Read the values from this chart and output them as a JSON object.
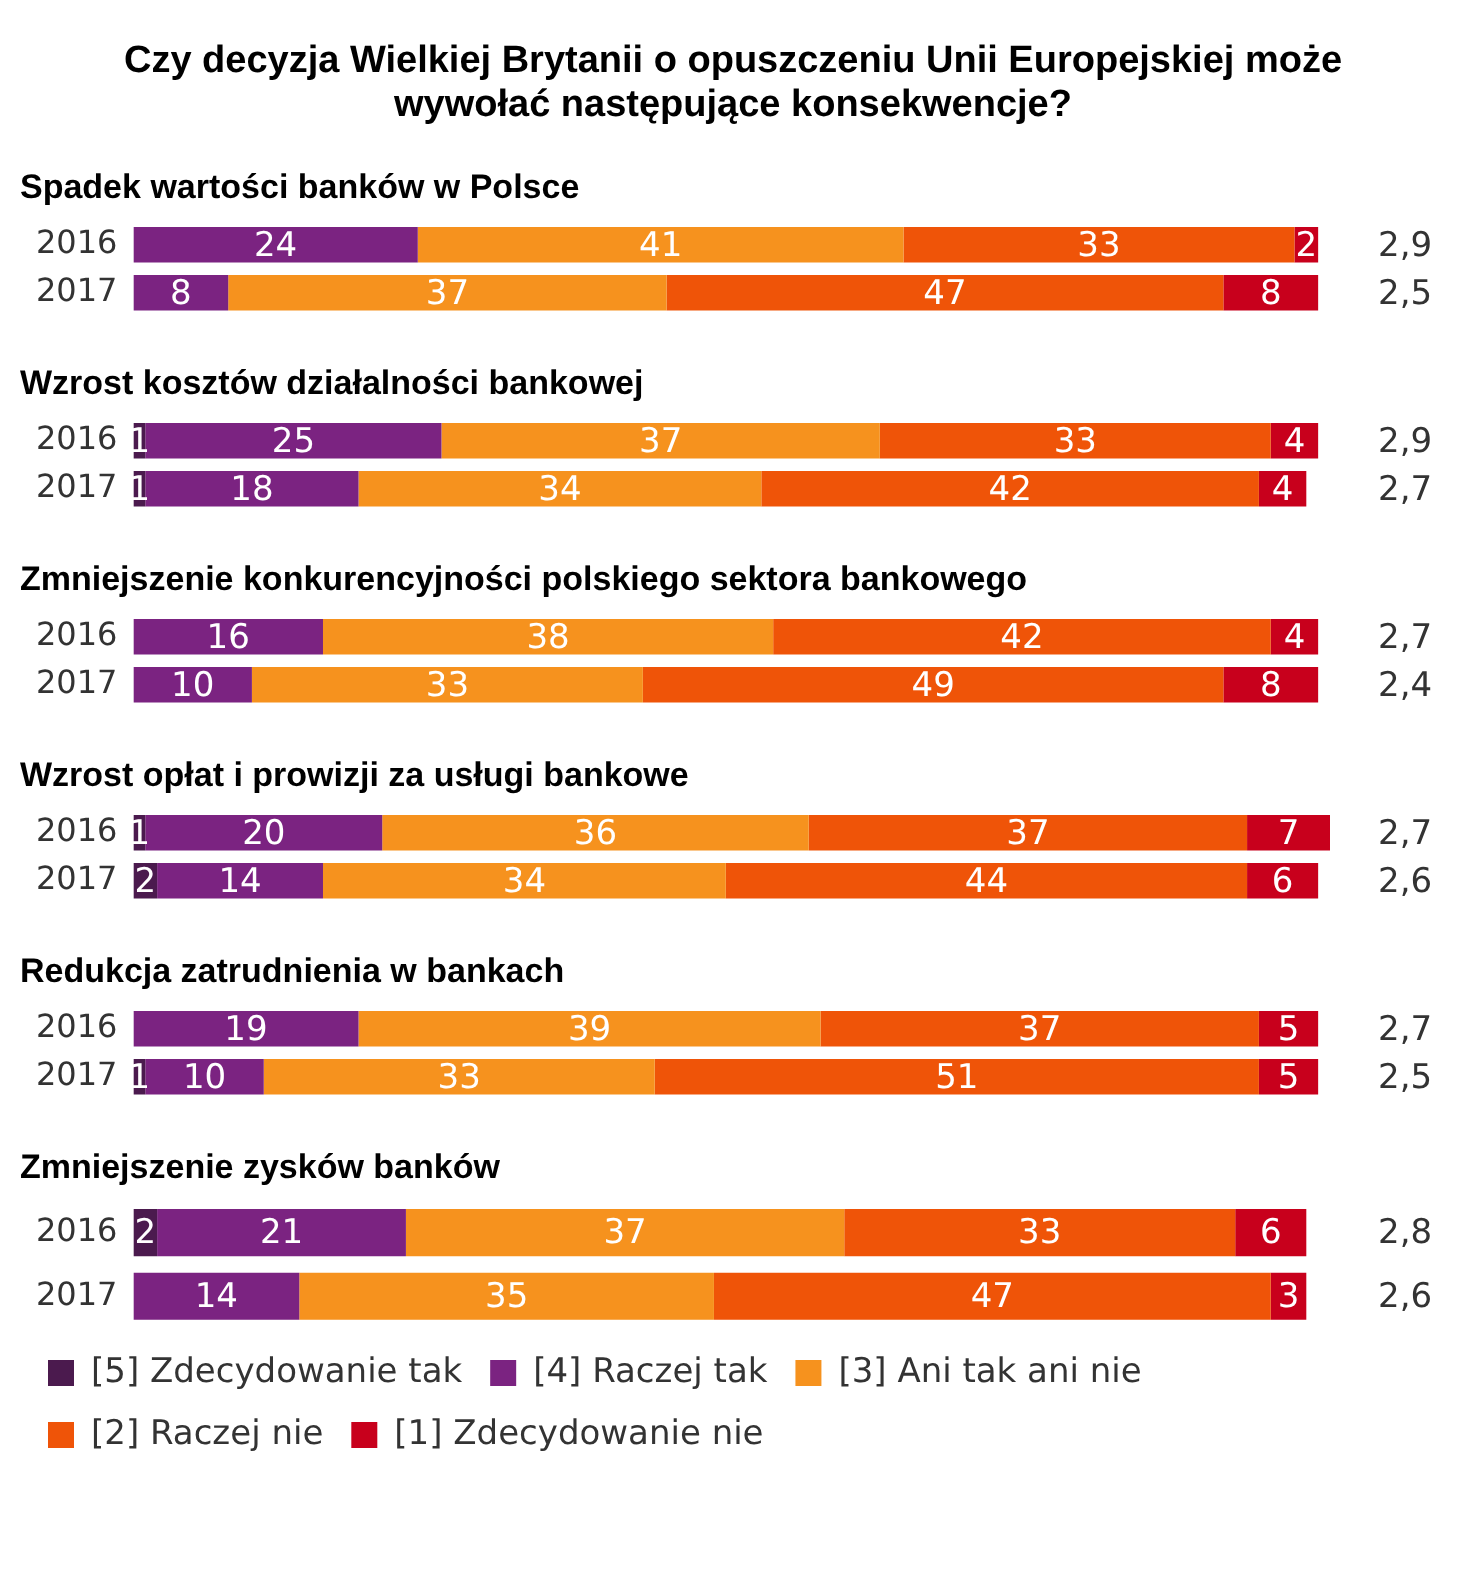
{
  "chart_data": [
    {
      "type": "other",
      "title": "Czy decyzja Wielkiej Brytanii o opuszczeniu Unii Europejskiej może wywołać następujące konsekwencje?"
    },
    {
      "type": "bar",
      "orientation": "horizontal",
      "stacked": true,
      "data_labels": true,
      "title": "Spadek wartości banków w Polsce",
      "categories": [
        "2016",
        "2017"
      ],
      "tick_labels": "y",
      "grid": false,
      "legend": false,
      "series": [
        {
          "color": "#4b1a4e",
          "values": [
            null,
            null
          ]
        },
        {
          "color": "#7b2381",
          "values": [
            24,
            8
          ]
        },
        {
          "color": "#f6921e",
          "values": [
            41,
            37
          ]
        },
        {
          "color": "#ef5408",
          "values": [
            33,
            47
          ]
        },
        {
          "color": "#c8001c",
          "values": [
            2,
            8
          ]
        }
      ],
      "annotations": [
        "2,9",
        "2,5"
      ]
    },
    {
      "type": "bar",
      "orientation": "horizontal",
      "stacked": true,
      "data_labels": true,
      "title": "Wzrost kosztów działalności bankowej",
      "categories": [
        "2016",
        "2017"
      ],
      "tick_labels": "y",
      "grid": false,
      "legend": false,
      "series": [
        {
          "color": "#4b1a4e",
          "values": [
            1,
            1
          ]
        },
        {
          "color": "#7b2381",
          "values": [
            25,
            18
          ]
        },
        {
          "color": "#f6921e",
          "values": [
            37,
            34
          ]
        },
        {
          "color": "#ef5408",
          "values": [
            33,
            42
          ]
        },
        {
          "color": "#c8001c",
          "values": [
            4,
            4
          ]
        }
      ],
      "annotations": [
        "2,9",
        "2,7"
      ]
    },
    {
      "type": "bar",
      "orientation": "horizontal",
      "stacked": true,
      "data_labels": true,
      "title": "Zmniejszenie konkurencyjności polskiego sektora bankowego",
      "categories": [
        "2016",
        "2017"
      ],
      "tick_labels": "y",
      "grid": false,
      "legend": false,
      "series": [
        {
          "color": "#4b1a4e",
          "values": [
            null,
            null
          ]
        },
        {
          "color": "#7b2381",
          "values": [
            16,
            10
          ]
        },
        {
          "color": "#f6921e",
          "values": [
            38,
            33
          ]
        },
        {
          "color": "#ef5408",
          "values": [
            42,
            49
          ]
        },
        {
          "color": "#c8001c",
          "values": [
            4,
            8
          ]
        }
      ],
      "annotations": [
        "2,7",
        "2,4"
      ]
    },
    {
      "type": "bar",
      "orientation": "horizontal",
      "stacked": true,
      "data_labels": true,
      "title": "Wzrost opłat i prowizji za usługi bankowe",
      "categories": [
        "2016",
        "2017"
      ],
      "tick_labels": "y",
      "grid": false,
      "legend": false,
      "series": [
        {
          "color": "#4b1a4e",
          "values": [
            1,
            2
          ]
        },
        {
          "color": "#7b2381",
          "values": [
            20,
            14
          ]
        },
        {
          "color": "#f6921e",
          "values": [
            36,
            34
          ]
        },
        {
          "color": "#ef5408",
          "values": [
            37,
            44
          ]
        },
        {
          "color": "#c8001c",
          "values": [
            7,
            6
          ]
        }
      ],
      "annotations": [
        "2,7",
        "2,6"
      ]
    },
    {
      "type": "bar",
      "orientation": "horizontal",
      "stacked": true,
      "data_labels": true,
      "title": "Redukcja zatrudnienia w bankach",
      "categories": [
        "2016",
        "2017"
      ],
      "tick_labels": "y",
      "grid": false,
      "legend": false,
      "series": [
        {
          "color": "#4b1a4e",
          "values": [
            null,
            1
          ]
        },
        {
          "color": "#7b2381",
          "values": [
            19,
            10
          ]
        },
        {
          "color": "#f6921e",
          "values": [
            39,
            33
          ]
        },
        {
          "color": "#ef5408",
          "values": [
            37,
            51
          ]
        },
        {
          "color": "#c8001c",
          "values": [
            5,
            5
          ]
        }
      ],
      "annotations": [
        "2,7",
        "2,5"
      ]
    },
    {
      "type": "bar",
      "orientation": "horizontal",
      "stacked": true,
      "data_labels": true,
      "title": "Zmniejszenie zysków banków",
      "categories": [
        "2016",
        "2017"
      ],
      "tick_labels": "y",
      "grid": false,
      "legend": "bottom",
      "series": [
        {
          "name": "[5] Zdecydowanie tak",
          "color": "#4b1a4e",
          "values": [
            2,
            null
          ]
        },
        {
          "name": "[4] Raczej tak",
          "color": "#7b2381",
          "values": [
            21,
            14
          ]
        },
        {
          "name": "[3] Ani tak ani nie",
          "color": "#f6921e",
          "values": [
            37,
            35
          ]
        },
        {
          "name": "[2] Raczej nie",
          "color": "#ef5408",
          "values": [
            33,
            47
          ]
        },
        {
          "name": "[1] Zdecydowanie nie",
          "color": "#c8001c",
          "values": [
            6,
            3
          ]
        }
      ],
      "annotations": [
        "2,8",
        "2,6"
      ]
    }
  ]
}
